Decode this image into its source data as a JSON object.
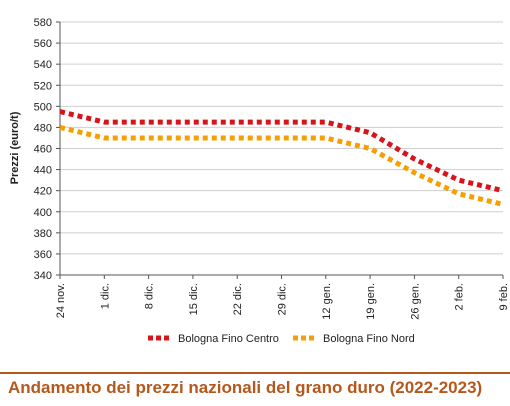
{
  "chart_data": {
    "type": "line",
    "title": "Andamento dei prezzi nazionali del grano duro (2022-2023)",
    "ylabel": "Prezzi (euro/t)",
    "xlabel": "",
    "ylim": [
      340,
      580
    ],
    "yticks": [
      340,
      360,
      380,
      400,
      420,
      440,
      460,
      480,
      500,
      520,
      540,
      560,
      580
    ],
    "categories": [
      "24 nov.",
      "1 dic.",
      "8 dic.",
      "15 dic.",
      "22 dic.",
      "29 dic.",
      "12 gen.",
      "19 gen.",
      "26 gen.",
      "2 feb.",
      "9 feb."
    ],
    "grid": true,
    "legend_position": "bottom",
    "series": [
      {
        "name": "Bologna Fino Centro",
        "color": "#d7141a",
        "values": [
          495,
          485,
          485,
          485,
          485,
          485,
          485,
          475,
          450,
          430,
          420
        ]
      },
      {
        "name": "Bologna Fino Nord",
        "color": "#f59f00",
        "values": [
          480,
          470,
          470,
          470,
          470,
          470,
          470,
          460,
          437,
          417,
          407
        ]
      }
    ]
  }
}
